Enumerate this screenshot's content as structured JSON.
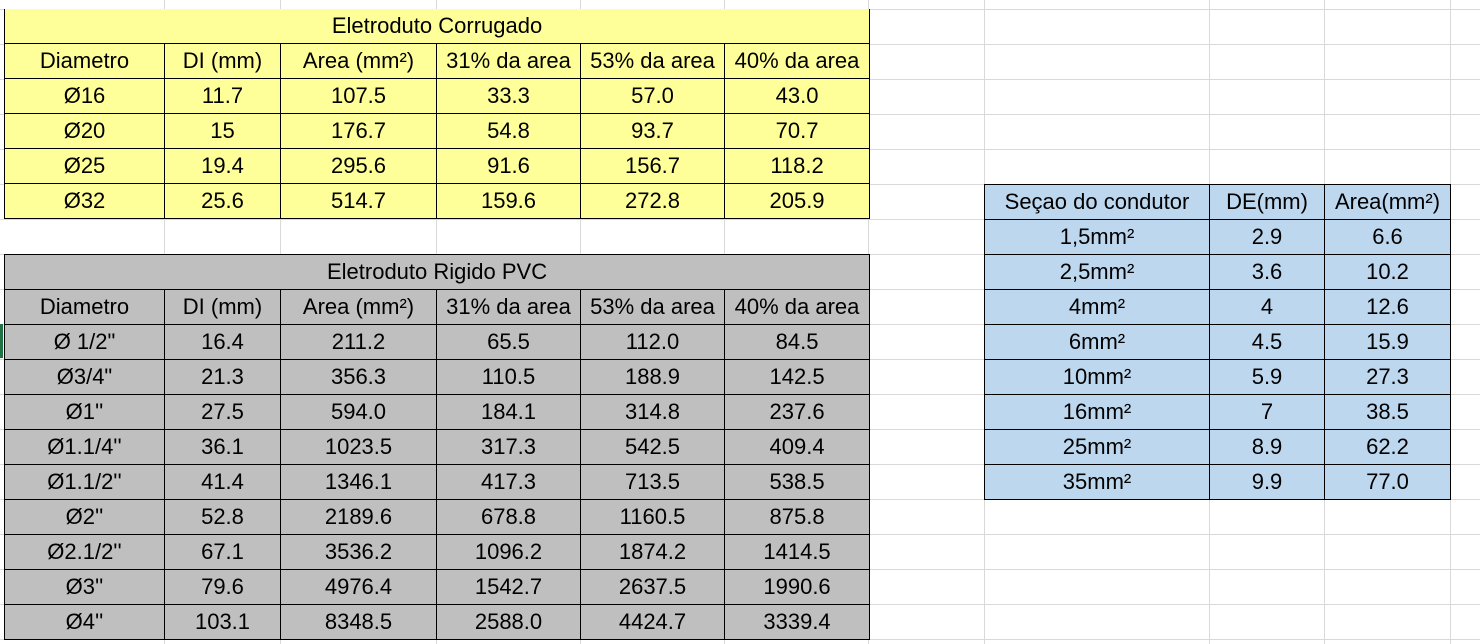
{
  "corrugado": {
    "title": "Eletroduto Corrugado",
    "headers": [
      "Diametro",
      "DI (mm)",
      "Area (mm²)",
      "31% da area",
      "53% da area",
      "40% da area"
    ],
    "rows": [
      [
        "Ø16",
        "11.7",
        "107.5",
        "33.3",
        "57.0",
        "43.0"
      ],
      [
        "Ø20",
        "15",
        "176.7",
        "54.8",
        "93.7",
        "70.7"
      ],
      [
        "Ø25",
        "19.4",
        "295.6",
        "91.6",
        "156.7",
        "118.2"
      ],
      [
        "Ø32",
        "25.6",
        "514.7",
        "159.6",
        "272.8",
        "205.9"
      ]
    ]
  },
  "rigido": {
    "title": "Eletroduto Rigido PVC",
    "headers": [
      "Diametro",
      "DI (mm)",
      "Area (mm²)",
      "31% da area",
      "53% da area",
      "40% da area"
    ],
    "rows": [
      [
        "Ø 1/2\"",
        "16.4",
        "211.2",
        "65.5",
        "112.0",
        "84.5"
      ],
      [
        "Ø3/4\"",
        "21.3",
        "356.3",
        "110.5",
        "188.9",
        "142.5"
      ],
      [
        "Ø1''",
        "27.5",
        "594.0",
        "184.1",
        "314.8",
        "237.6"
      ],
      [
        "Ø1.1/4''",
        "36.1",
        "1023.5",
        "317.3",
        "542.5",
        "409.4"
      ],
      [
        "Ø1.1/2''",
        "41.4",
        "1346.1",
        "417.3",
        "713.5",
        "538.5"
      ],
      [
        "Ø2''",
        "52.8",
        "2189.6",
        "678.8",
        "1160.5",
        "875.8"
      ],
      [
        "Ø2.1/2''",
        "67.1",
        "3536.2",
        "1096.2",
        "1874.2",
        "1414.5"
      ],
      [
        "Ø3''",
        "79.6",
        "4976.4",
        "1542.7",
        "2637.5",
        "1990.6"
      ],
      [
        "Ø4''",
        "103.1",
        "8348.5",
        "2588.0",
        "4424.7",
        "3339.4"
      ]
    ]
  },
  "condutor": {
    "headers": [
      "Seçao do condutor",
      "DE(mm)",
      "Area(mm²)"
    ],
    "rows": [
      [
        "1,5mm²",
        "2.9",
        "6.6"
      ],
      [
        "2,5mm²",
        "3.6",
        "10.2"
      ],
      [
        "4mm²",
        "4",
        "12.6"
      ],
      [
        "6mm²",
        "4.5",
        "15.9"
      ],
      [
        "10mm²",
        "5.9",
        "27.3"
      ],
      [
        "16mm²",
        "7",
        "38.5"
      ],
      [
        "25mm²",
        "8.9",
        "62.2"
      ],
      [
        "35mm²",
        "9.9",
        "77.0"
      ]
    ]
  },
  "colors": {
    "yellow_fill": "#ffff99",
    "gray_fill": "#bfbfbf",
    "blue_fill": "#bdd7ee",
    "gridline": "#d9d9d9"
  }
}
